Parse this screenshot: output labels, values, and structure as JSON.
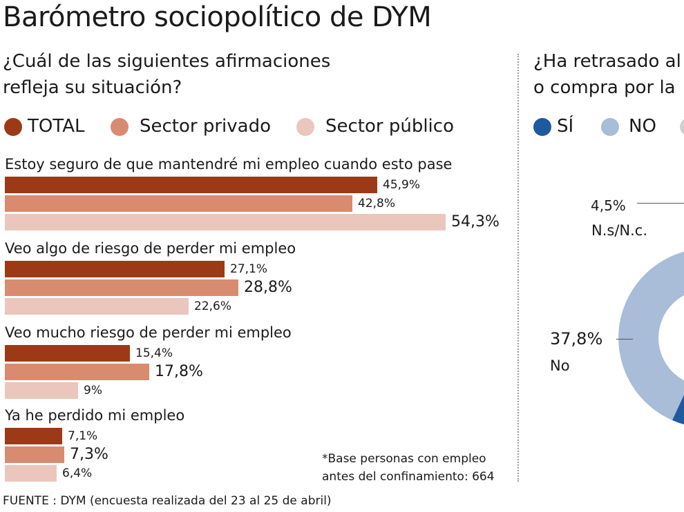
{
  "title": "Barómetro sociopolítico de DYM",
  "source": "FUENTE : DYM (encuesta realizada del 23 al 25 de abril)",
  "footnote": {
    "line1": "*Base personas con empleo",
    "line2": "antes del confinamiento: 664"
  },
  "colors": {
    "total": "#9c3a17",
    "privado": "#d98b70",
    "publico": "#ebc6bd",
    "si": "#1f5a9e",
    "no": "#a9bcd8"
  },
  "chart_data": [
    {
      "type": "bar",
      "orientation": "horizontal",
      "title_line1": "¿Cuál de las siguientes afirmaciones",
      "title_line2": "refleja su situación?",
      "legend": [
        "TOTAL",
        "Sector privado",
        "Sector público"
      ],
      "xlim": [
        0,
        54.3
      ],
      "categories": [
        "Estoy seguro de que mantendré mi empleo cuando esto pase",
        "Veo algo de riesgo de perder mi empleo",
        "Veo mucho riesgo de perder mi empleo",
        "Ya he perdido mi empleo"
      ],
      "series": [
        {
          "name": "TOTAL",
          "values": [
            45.9,
            27.1,
            15.4,
            7.1
          ],
          "labels": [
            "45,9%",
            "27,1%",
            "15,4%",
            "7,1%"
          ]
        },
        {
          "name": "Sector privado",
          "values": [
            42.8,
            28.8,
            17.8,
            7.3
          ],
          "labels": [
            "42,8%",
            "28,8%",
            "17,8%",
            "7,3%"
          ]
        },
        {
          "name": "Sector público",
          "values": [
            54.3,
            22.6,
            9,
            6.4
          ],
          "labels": [
            "54,3%",
            "22,6%",
            "9%",
            "6,4%"
          ]
        }
      ]
    },
    {
      "type": "pie",
      "title_line1": "¿Ha retrasado al",
      "title_line2": "o compra por la",
      "legend": [
        "SÍ",
        "NO"
      ],
      "slices": [
        {
          "label": "N.s/N.c.",
          "value": 4.5,
          "text": "4,5%"
        },
        {
          "label": "No",
          "value": 37.8,
          "text": "37,8%"
        }
      ]
    }
  ]
}
